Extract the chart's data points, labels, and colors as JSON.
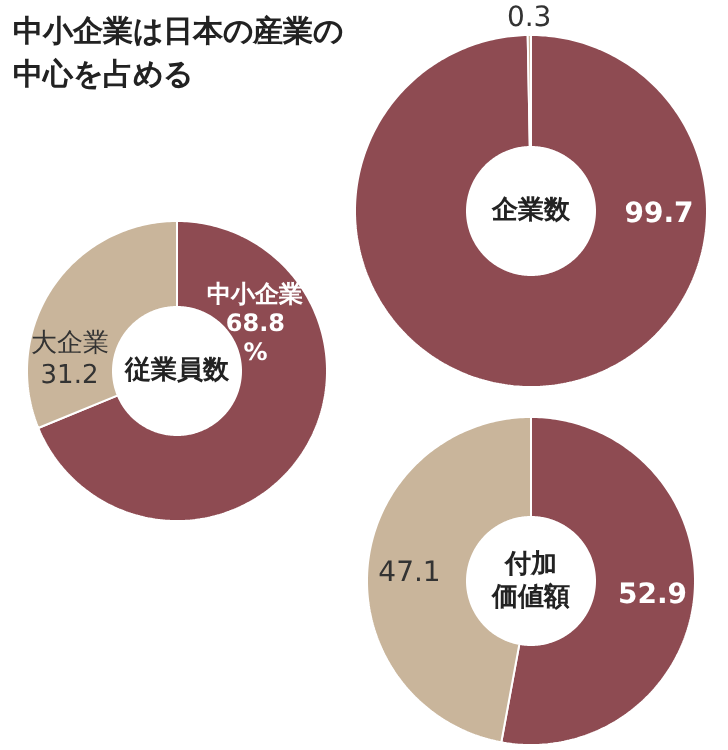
{
  "chart_data": [
    {
      "type": "other",
      "title": "中小企業は日本の産業の中心を占める"
    },
    {
      "type": "donut",
      "title": "企業数",
      "categories": [
        null,
        null
      ],
      "values": [
        99.7,
        0.3
      ],
      "colors": [
        "#8e4b52",
        "#c9b59b"
      ],
      "data_labels": true
    },
    {
      "type": "donut",
      "title": "従業員数",
      "categories": [
        "中小企業",
        "大企業"
      ],
      "values": [
        68.8,
        31.2
      ],
      "colors": [
        "#8e4b52",
        "#c9b59b"
      ],
      "value_labels": [
        "68.8\n%",
        "31.2"
      ]
    },
    {
      "type": "donut",
      "title": "付加価値額",
      "categories": [
        null,
        null
      ],
      "values": [
        52.9,
        47.1
      ],
      "colors": [
        "#8e4b52",
        "#c9b59b"
      ],
      "data_labels": true
    }
  ]
}
